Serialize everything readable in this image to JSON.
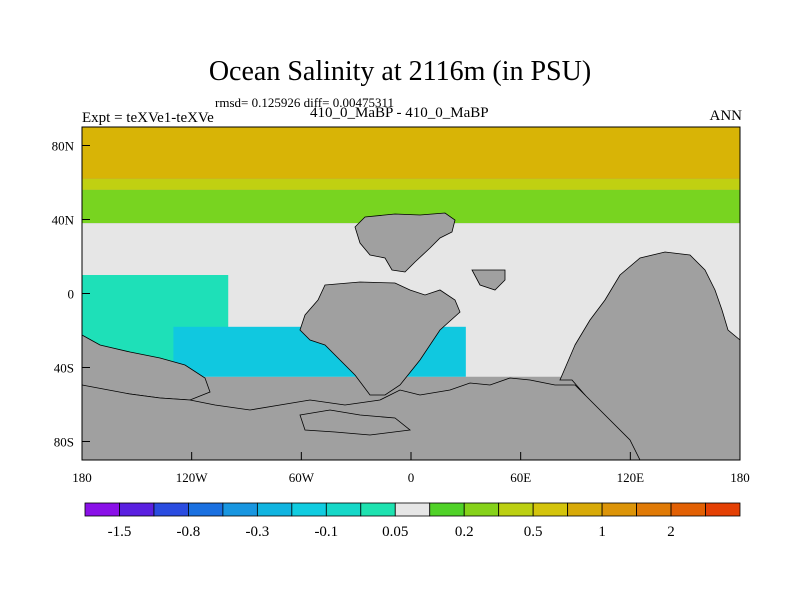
{
  "header": {
    "title": "Ocean Salinity at 2116m (in PSU)",
    "stats": "rmsd= 0.125926 diff= 0.00475311",
    "expt": "Expt = teXVe1-teXVe",
    "cases": "410_0_MaBP - 410_0_MaBP",
    "season": "ANN"
  },
  "chart_data": {
    "type": "heatmap",
    "title": "Ocean Salinity at 2116m (in PSU)",
    "subtitle": "rmsd= 0.125926 diff= 0.00475311",
    "left_label": "Expt = teXVe1-teXVe",
    "center_label": "410_0_MaBP - 410_0_MaBP",
    "right_label": "ANN",
    "xlim": [
      -180,
      180
    ],
    "ylim": [
      -90,
      90
    ],
    "x_ticks": [
      {
        "value": -180,
        "label": "180"
      },
      {
        "value": -120,
        "label": "120W"
      },
      {
        "value": -60,
        "label": "60W"
      },
      {
        "value": 0,
        "label": "0"
      },
      {
        "value": 60,
        "label": "60E"
      },
      {
        "value": 120,
        "label": "120E"
      },
      {
        "value": 180,
        "label": "180"
      }
    ],
    "y_ticks": [
      {
        "value": 80,
        "label": "80N"
      },
      {
        "value": 40,
        "label": "40N"
      },
      {
        "value": 0,
        "label": "0"
      },
      {
        "value": -40,
        "label": "40S"
      },
      {
        "value": -80,
        "label": "80S"
      }
    ],
    "colorbar": {
      "colors": [
        "#8a10e8",
        "#5a20e0",
        "#2a4ce0",
        "#1a70e0",
        "#1896e0",
        "#10b4e0",
        "#10cce0",
        "#16d8c8",
        "#1ee2b0",
        "#e6e6e6",
        "#50d228",
        "#86d21a",
        "#bcd012",
        "#d4c40c",
        "#d8aa08",
        "#dc9408",
        "#e07a06",
        "#e26004",
        "#e44004"
      ],
      "labels": [
        {
          "boundary": 1,
          "label": "-1.5"
        },
        {
          "boundary": 3,
          "label": "-0.8"
        },
        {
          "boundary": 5,
          "label": "-0.3"
        },
        {
          "boundary": 7,
          "label": "-0.1"
        },
        {
          "boundary": 9,
          "label": "0.05"
        },
        {
          "boundary": 11,
          "label": "0.2"
        },
        {
          "boundary": 13,
          "label": "0.5"
        },
        {
          "boundary": 15,
          "label": "1"
        },
        {
          "boundary": 17,
          "label": "2"
        }
      ]
    },
    "fields": [
      {
        "name": "high-positive-band",
        "value_range": "0.5 to 1",
        "color": "#d8b406",
        "lon": [
          -180,
          180
        ],
        "lat": [
          62,
          90
        ]
      },
      {
        "name": "upper-positive-band",
        "value_range": "0.2 to 0.5",
        "color": "#c0d012",
        "lon": [
          -180,
          180
        ],
        "lat": [
          56,
          62
        ]
      },
      {
        "name": "mid-positive-band",
        "value_range": "0.05 to 0.2",
        "color": "#78d420",
        "lon": [
          -180,
          180
        ],
        "lat": [
          38,
          56
        ]
      },
      {
        "name": "near-zero-region",
        "value_range": "-0.1 to 0.05",
        "color": "#e6e6e6",
        "lon": [
          -180,
          180
        ],
        "lat": [
          -45,
          38
        ]
      },
      {
        "name": "south-pacific-negative",
        "value_range": "-0.1 to -0.05",
        "color": "#1ee0b8",
        "lon": [
          -180,
          -100
        ],
        "lat": [
          -40,
          10
        ]
      },
      {
        "name": "south-atlantic-negative",
        "value_range": "-0.3 to -0.1",
        "color": "#10c8e0",
        "lon": [
          -130,
          30
        ],
        "lat": [
          -45,
          -18
        ]
      }
    ],
    "land": {
      "color": "#a0a0a0",
      "regions": [
        "Eurasia",
        "Africa",
        "Americas",
        "Australia",
        "Antarctica"
      ]
    }
  }
}
